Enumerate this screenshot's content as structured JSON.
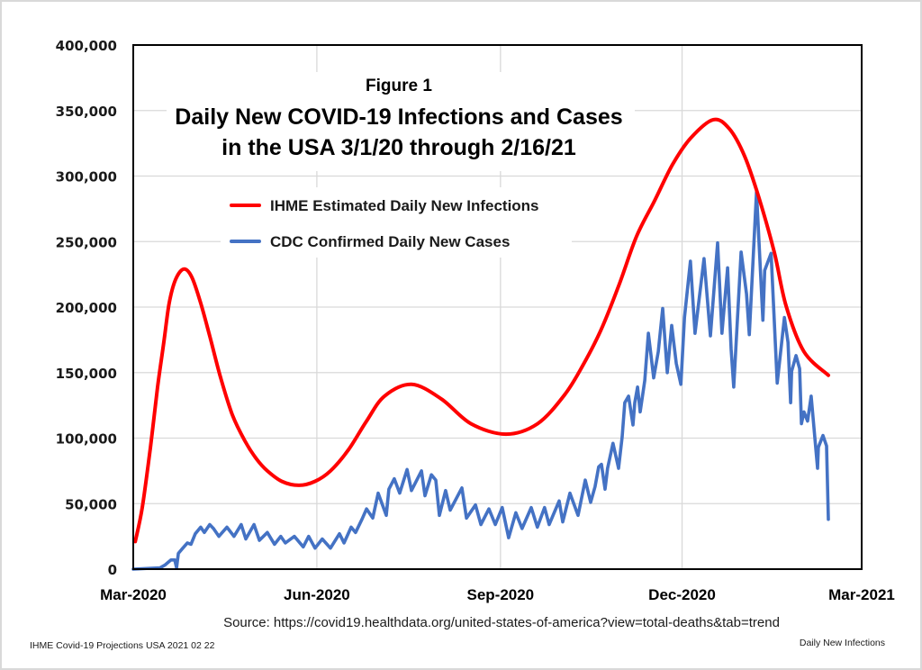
{
  "chart_data": {
    "type": "line",
    "figure_label": "Figure 1",
    "title_lines": [
      "Daily New COVID-19 Infections and Cases",
      "in the USA 3/1/20 through 2/16/21"
    ],
    "xlabel": "",
    "ylabel": "",
    "x_unit": "days since 2020-03-01",
    "xlim": [
      0,
      365
    ],
    "ylim": [
      0,
      400000
    ],
    "grid": true,
    "legend_position": "upper-left-center",
    "x_ticks": [
      {
        "day": 0,
        "label": "Mar-2020"
      },
      {
        "day": 92,
        "label": "Jun-2020"
      },
      {
        "day": 184,
        "label": "Sep-2020"
      },
      {
        "day": 275,
        "label": "Dec-2020"
      },
      {
        "day": 365,
        "label": "Mar-2021"
      }
    ],
    "y_ticks": [
      {
        "value": 0,
        "label": "0"
      },
      {
        "value": 50000,
        "label": "50,000"
      },
      {
        "value": 100000,
        "label": "100,000"
      },
      {
        "value": 150000,
        "label": "150,000"
      },
      {
        "value": 200000,
        "label": "200,000"
      },
      {
        "value": 250000,
        "label": "250,000"
      },
      {
        "value": 300000,
        "label": "300,000"
      },
      {
        "value": 350000,
        "label": "350,000"
      },
      {
        "value": 400000,
        "label": "400,000"
      }
    ],
    "series": [
      {
        "name": "IHME Estimated Daily New Infections",
        "color": "#ff0000",
        "points": [
          [
            1,
            21000
          ],
          [
            4.5,
            47000
          ],
          [
            8.6,
            93000
          ],
          [
            12.2,
            139000
          ],
          [
            15.3,
            173000
          ],
          [
            18,
            203000
          ],
          [
            21.2,
            221000
          ],
          [
            25.3,
            229000
          ],
          [
            29.3,
            223000
          ],
          [
            33.8,
            203000
          ],
          [
            38.3,
            178000
          ],
          [
            43.8,
            146000
          ],
          [
            49.6,
            118000
          ],
          [
            55.9,
            98000
          ],
          [
            61.8,
            84000
          ],
          [
            67.2,
            75000
          ],
          [
            74.4,
            67000
          ],
          [
            83,
            64000
          ],
          [
            91.1,
            67000
          ],
          [
            98.8,
            75000
          ],
          [
            107.8,
            91000
          ],
          [
            116.9,
            113000
          ],
          [
            125.9,
            132000
          ],
          [
            139.4,
            141000
          ],
          [
            154.3,
            130000
          ],
          [
            169.2,
            111000
          ],
          [
            186.8,
            103000
          ],
          [
            202.6,
            111000
          ],
          [
            216.1,
            133000
          ],
          [
            225.1,
            155000
          ],
          [
            234.2,
            182000
          ],
          [
            243.2,
            216000
          ],
          [
            252.2,
            254000
          ],
          [
            261.2,
            281000
          ],
          [
            270.3,
            309000
          ],
          [
            279.3,
            329000
          ],
          [
            290.6,
            343000
          ],
          [
            298.7,
            336000
          ],
          [
            306.4,
            315000
          ],
          [
            313.6,
            283000
          ],
          [
            321.2,
            242000
          ],
          [
            327.1,
            201000
          ],
          [
            336.1,
            166000
          ],
          [
            348.3,
            148000
          ]
        ]
      },
      {
        "name": "CDC Confirmed Daily New Cases",
        "color": "#4472c4",
        "points": [
          [
            0,
            0
          ],
          [
            13.5,
            1000
          ],
          [
            15.8,
            3000
          ],
          [
            18.9,
            7000
          ],
          [
            20.8,
            7000
          ],
          [
            21.7,
            1000
          ],
          [
            22.6,
            12000
          ],
          [
            24.8,
            16000
          ],
          [
            27.1,
            20000
          ],
          [
            28.9,
            19000
          ],
          [
            31.1,
            27000
          ],
          [
            33.8,
            32000
          ],
          [
            35.6,
            28000
          ],
          [
            38.3,
            34000
          ],
          [
            40.2,
            31000
          ],
          [
            42.9,
            25000
          ],
          [
            46.9,
            32000
          ],
          [
            50.5,
            25000
          ],
          [
            54.1,
            34000
          ],
          [
            56.4,
            23000
          ],
          [
            60.5,
            34000
          ],
          [
            63.2,
            22000
          ],
          [
            67.2,
            28000
          ],
          [
            70.8,
            19000
          ],
          [
            73.9,
            25000
          ],
          [
            76.2,
            20000
          ],
          [
            80.7,
            25000
          ],
          [
            85.2,
            17000
          ],
          [
            87.9,
            25000
          ],
          [
            91.1,
            16000
          ],
          [
            94.7,
            23000
          ],
          [
            98.8,
            16000
          ],
          [
            103.3,
            27000
          ],
          [
            105.6,
            20000
          ],
          [
            109.2,
            32000
          ],
          [
            111.4,
            28000
          ],
          [
            114.6,
            38000
          ],
          [
            116.9,
            46000
          ],
          [
            120,
            39000
          ],
          [
            122.7,
            58000
          ],
          [
            126.8,
            41000
          ],
          [
            128.1,
            61000
          ],
          [
            130.8,
            69000
          ],
          [
            133.5,
            58000
          ],
          [
            137.2,
            76000
          ],
          [
            139.4,
            60000
          ],
          [
            144.4,
            75000
          ],
          [
            146.2,
            56000
          ],
          [
            149.4,
            72000
          ],
          [
            151.6,
            68000
          ],
          [
            153.4,
            41000
          ],
          [
            156.5,
            60000
          ],
          [
            158.8,
            45000
          ],
          [
            164.7,
            62000
          ],
          [
            167,
            39000
          ],
          [
            171.5,
            49000
          ],
          [
            174.2,
            34000
          ],
          [
            178.2,
            46000
          ],
          [
            181.4,
            34000
          ],
          [
            184.9,
            47000
          ],
          [
            188.1,
            24000
          ],
          [
            191.7,
            43000
          ],
          [
            194.8,
            31000
          ],
          [
            199.4,
            47000
          ],
          [
            202.5,
            32000
          ],
          [
            206.1,
            47000
          ],
          [
            208.4,
            34000
          ],
          [
            213.4,
            52000
          ],
          [
            215.2,
            36000
          ],
          [
            218.8,
            58000
          ],
          [
            222.9,
            41000
          ],
          [
            226.5,
            68000
          ],
          [
            229.2,
            51000
          ],
          [
            231.4,
            63000
          ],
          [
            233.2,
            78000
          ],
          [
            234.6,
            80000
          ],
          [
            236.4,
            61000
          ],
          [
            237.7,
            77000
          ],
          [
            240.4,
            96000
          ],
          [
            243.2,
            77000
          ],
          [
            245,
            101000
          ],
          [
            246.3,
            127000
          ],
          [
            248.2,
            132000
          ],
          [
            250.4,
            110000
          ],
          [
            251.3,
            127000
          ],
          [
            252.7,
            139000
          ],
          [
            254,
            120000
          ],
          [
            256.3,
            144000
          ],
          [
            258.1,
            180000
          ],
          [
            260.8,
            146000
          ],
          [
            263.1,
            166000
          ],
          [
            265.3,
            199000
          ],
          [
            267.6,
            150000
          ],
          [
            269.8,
            186000
          ],
          [
            272.1,
            157000
          ],
          [
            274.4,
            141000
          ],
          [
            276.2,
            192000
          ],
          [
            279.2,
            235000
          ],
          [
            281.5,
            180000
          ],
          [
            286,
            237000
          ],
          [
            289.2,
            178000
          ],
          [
            292.8,
            249000
          ],
          [
            295,
            180000
          ],
          [
            297.8,
            230000
          ],
          [
            299.6,
            168000
          ],
          [
            300.9,
            139000
          ],
          [
            304.6,
            242000
          ],
          [
            307.3,
            210000
          ],
          [
            308.7,
            179000
          ],
          [
            312.3,
            288000
          ],
          [
            315.5,
            190000
          ],
          [
            316.4,
            228000
          ],
          [
            319.6,
            241000
          ],
          [
            322.7,
            142000
          ],
          [
            326.3,
            192000
          ],
          [
            328.1,
            173000
          ],
          [
            329.4,
            127000
          ],
          [
            329.9,
            151000
          ],
          [
            332.1,
            163000
          ],
          [
            333.9,
            153000
          ],
          [
            334.8,
            111000
          ],
          [
            336.1,
            120000
          ],
          [
            337.9,
            113000
          ],
          [
            339.7,
            132000
          ],
          [
            342.9,
            77000
          ],
          [
            343.3,
            93000
          ],
          [
            345.6,
            102000
          ],
          [
            347.4,
            94000
          ],
          [
            348.3,
            38000
          ]
        ]
      }
    ],
    "source_text": "Source:  https://covid19.healthdata.org/united-states-of-america?view=total-deaths&tab=trend"
  },
  "footer": {
    "left": "IHME Covid-19 Projections USA 2021 02 22",
    "right": "Daily New Infections"
  }
}
